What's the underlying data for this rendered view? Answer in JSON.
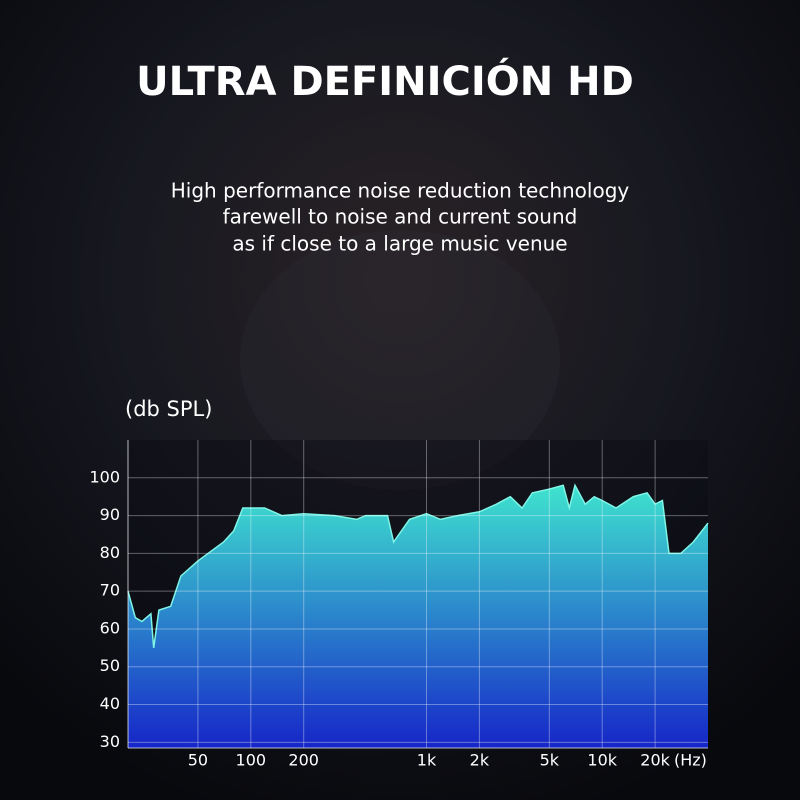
{
  "chart_data": {
    "type": "area",
    "title": "ULTRA DEFINICIÓN HD",
    "subtitle": [
      "High performance noise reduction technology",
      "farewell to noise and current sound",
      "as if close to a large music venue"
    ],
    "y_label": "(db SPL)",
    "x_label": "(Hz)",
    "x_log": true,
    "grid": true,
    "xlim": [
      20,
      40000
    ],
    "ylim": [
      28.5,
      110
    ],
    "yticks": [
      30,
      40,
      50,
      60,
      70,
      80,
      90,
      100
    ],
    "xticks": [
      50,
      100,
      200,
      {
        "value": 1000,
        "label": "1k"
      },
      {
        "value": 2000,
        "label": "2k"
      },
      {
        "value": 5000,
        "label": "5k"
      },
      {
        "value": 10000,
        "label": "10k"
      },
      {
        "value": 20000,
        "label": "20k"
      }
    ],
    "colors": [
      "#3fe3cf",
      "#1626c8"
    ],
    "line_color": "#7ff5e6",
    "x": [
      20,
      22,
      24,
      27,
      28,
      30,
      35,
      40,
      50,
      70,
      80,
      90,
      120,
      150,
      200,
      300,
      400,
      450,
      600,
      650,
      800,
      1000,
      1200,
      1500,
      2000,
      2500,
      3000,
      3500,
      4000,
      5000,
      6000,
      6500,
      7000,
      8000,
      9000,
      10000,
      12000,
      15000,
      18000,
      20000,
      22000,
      24000,
      28000,
      33000,
      40000
    ],
    "values": [
      70,
      63,
      62,
      64,
      55,
      65,
      66,
      74,
      78,
      83,
      86,
      92,
      92,
      90,
      90.5,
      90,
      89,
      90,
      90,
      83,
      89,
      90.5,
      89,
      90,
      91,
      93,
      95,
      92,
      96,
      97,
      98,
      92,
      98,
      93,
      95,
      94,
      92,
      95,
      96,
      93,
      94,
      80,
      80,
      83,
      88
    ]
  }
}
